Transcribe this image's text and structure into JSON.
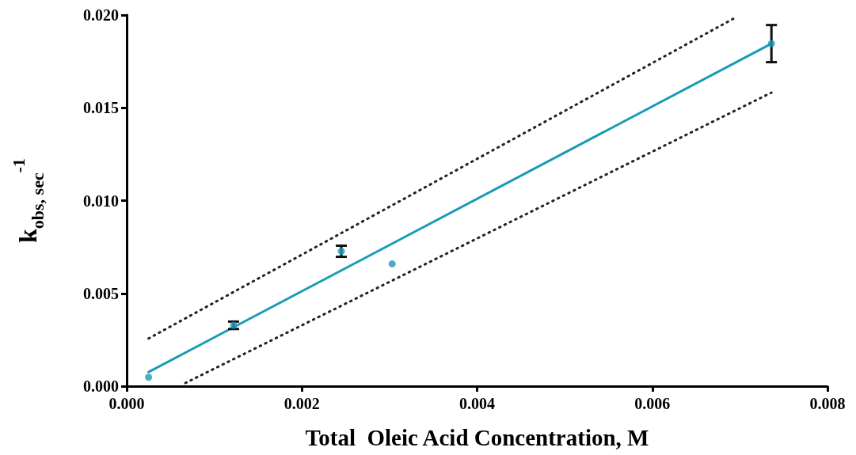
{
  "chart_data": {
    "type": "scatter",
    "xlabel": "Total  Oleic Acid Concentration, M",
    "ylabel": "k$_{obs, sec}$$^{-1}$",
    "xlim": [
      0,
      0.008
    ],
    "ylim": [
      0,
      0.02
    ],
    "xticks": [
      {
        "value": 0,
        "label": "0.000"
      },
      {
        "value": 0.002,
        "label": "0.002"
      },
      {
        "value": 0.004,
        "label": "0.004"
      },
      {
        "value": 0.006,
        "label": "0.006"
      },
      {
        "value": 0.008,
        "label": "0.008"
      }
    ],
    "yticks": [
      {
        "value": 0,
        "label": "0.000"
      },
      {
        "value": 0.005,
        "label": "0.005"
      },
      {
        "value": 0.01,
        "label": "0.010"
      },
      {
        "value": 0.015,
        "label": "0.015"
      },
      {
        "value": 0.02,
        "label": "0.020"
      }
    ],
    "grid": false,
    "series": [
      {
        "color": "#1a9bb5",
        "marker": "circle",
        "x": [
          0.00025,
          0.00122,
          0.00245,
          0.00303,
          0.00736
        ],
        "values": [
          0.00048,
          0.00328,
          0.00727,
          0.00659,
          0.01846
        ],
        "errors": [
          null,
          0.0002,
          0.0003,
          null,
          0.001
        ]
      },
      {
        "type": "line",
        "color": "#1a9bb5",
        "marker": "none",
        "line_style": "solid",
        "x": [
          0.00025,
          0.00736
        ],
        "values": [
          0.00076,
          0.01846
        ]
      },
      {
        "type": "line",
        "color": "#222222",
        "marker": "none",
        "line_style": "dotted",
        "x": [
          0.00025,
          0.00694
        ],
        "values": [
          0.00257,
          0.01984
        ]
      },
      {
        "type": "line",
        "color": "#222222",
        "marker": "none",
        "line_style": "dotted",
        "x": [
          0.00067,
          0.00736
        ],
        "values": [
          0.00017,
          0.01582
        ]
      }
    ]
  }
}
